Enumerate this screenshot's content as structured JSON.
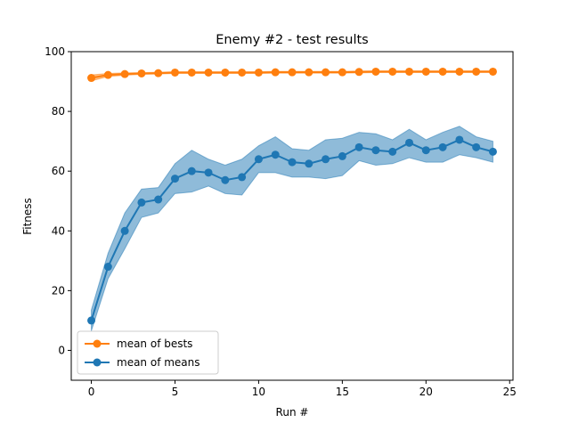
{
  "chart_data": {
    "type": "line",
    "title": "Enemy #2 - test results",
    "xlabel": "Run #",
    "ylabel": "Fitness",
    "xlim": [
      -1.2,
      25.2
    ],
    "ylim": [
      -10,
      100
    ],
    "xticks": [
      0,
      5,
      10,
      15,
      20,
      25
    ],
    "yticks": [
      0,
      20,
      40,
      60,
      80,
      100
    ],
    "grid": false,
    "legend_position": "lower-left",
    "x": [
      0,
      1,
      2,
      3,
      4,
      5,
      6,
      7,
      8,
      9,
      10,
      11,
      12,
      13,
      14,
      15,
      16,
      17,
      18,
      19,
      20,
      21,
      22,
      23,
      24
    ],
    "series": [
      {
        "name": "mean of bests",
        "color": "#ff7f0e",
        "marker": "circle",
        "values": [
          91.2,
          92.2,
          92.5,
          92.7,
          92.8,
          93.0,
          93.0,
          93.0,
          93.0,
          93.0,
          93.0,
          93.1,
          93.1,
          93.1,
          93.1,
          93.1,
          93.2,
          93.3,
          93.3,
          93.3,
          93.3,
          93.3,
          93.3,
          93.3,
          93.3
        ],
        "lower": [
          90.2,
          91.7,
          92.1,
          92.4,
          92.5,
          92.7,
          92.7,
          92.7,
          92.7,
          92.7,
          92.7,
          92.8,
          92.8,
          92.8,
          92.8,
          92.8,
          92.9,
          93.0,
          93.0,
          93.0,
          93.0,
          93.0,
          93.0,
          93.0,
          93.0
        ],
        "upper": [
          92.2,
          92.7,
          92.9,
          93.0,
          93.1,
          93.3,
          93.3,
          93.3,
          93.3,
          93.3,
          93.3,
          93.4,
          93.4,
          93.4,
          93.4,
          93.4,
          93.5,
          93.6,
          93.6,
          93.6,
          93.6,
          93.6,
          93.6,
          93.6,
          93.6
        ]
      },
      {
        "name": "mean of means",
        "color": "#1f77b4",
        "marker": "circle",
        "values": [
          10.0,
          28.0,
          40.0,
          49.5,
          50.5,
          57.5,
          60.0,
          59.5,
          57.0,
          58.0,
          64.0,
          65.5,
          63.0,
          62.5,
          64.0,
          65.0,
          68.0,
          67.0,
          66.5,
          69.5,
          67.0,
          68.0,
          70.5,
          68.0,
          66.5
        ],
        "lower": [
          6.5,
          24.0,
          34.0,
          44.5,
          46.0,
          52.5,
          53.0,
          55.0,
          52.5,
          52.0,
          59.5,
          59.5,
          58.0,
          58.0,
          57.5,
          58.5,
          63.5,
          62.0,
          62.5,
          64.5,
          63.0,
          63.0,
          65.5,
          64.5,
          63.0
        ],
        "upper": [
          13.5,
          32.5,
          46.0,
          54.0,
          54.5,
          62.5,
          67.0,
          64.0,
          62.0,
          64.0,
          68.5,
          71.5,
          67.5,
          67.0,
          70.5,
          71.0,
          73.0,
          72.5,
          70.5,
          74.0,
          70.5,
          73.0,
          75.0,
          71.5,
          70.0
        ]
      }
    ]
  }
}
